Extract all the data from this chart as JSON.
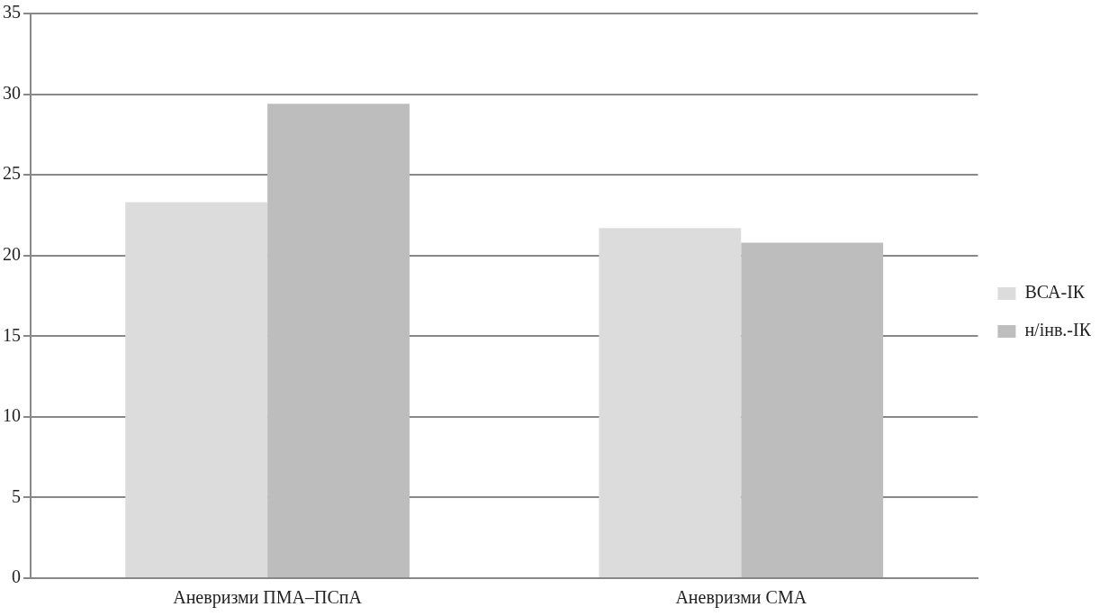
{
  "chart_data": {
    "type": "bar",
    "categories": [
      "Аневризми ПМА–ПСпА",
      "Аневризми СМА"
    ],
    "series": [
      {
        "name": "ВСА-ІК",
        "color": "#dcdcdc",
        "values": [
          23.3,
          21.7
        ]
      },
      {
        "name": "н/інв.-ІК",
        "color": "#bdbdbd",
        "values": [
          29.4,
          20.8
        ]
      }
    ],
    "ylim": [
      0,
      35
    ],
    "yticks": [
      0,
      5,
      10,
      15,
      20,
      25,
      30,
      35
    ],
    "grid": "y",
    "legend": "right"
  }
}
